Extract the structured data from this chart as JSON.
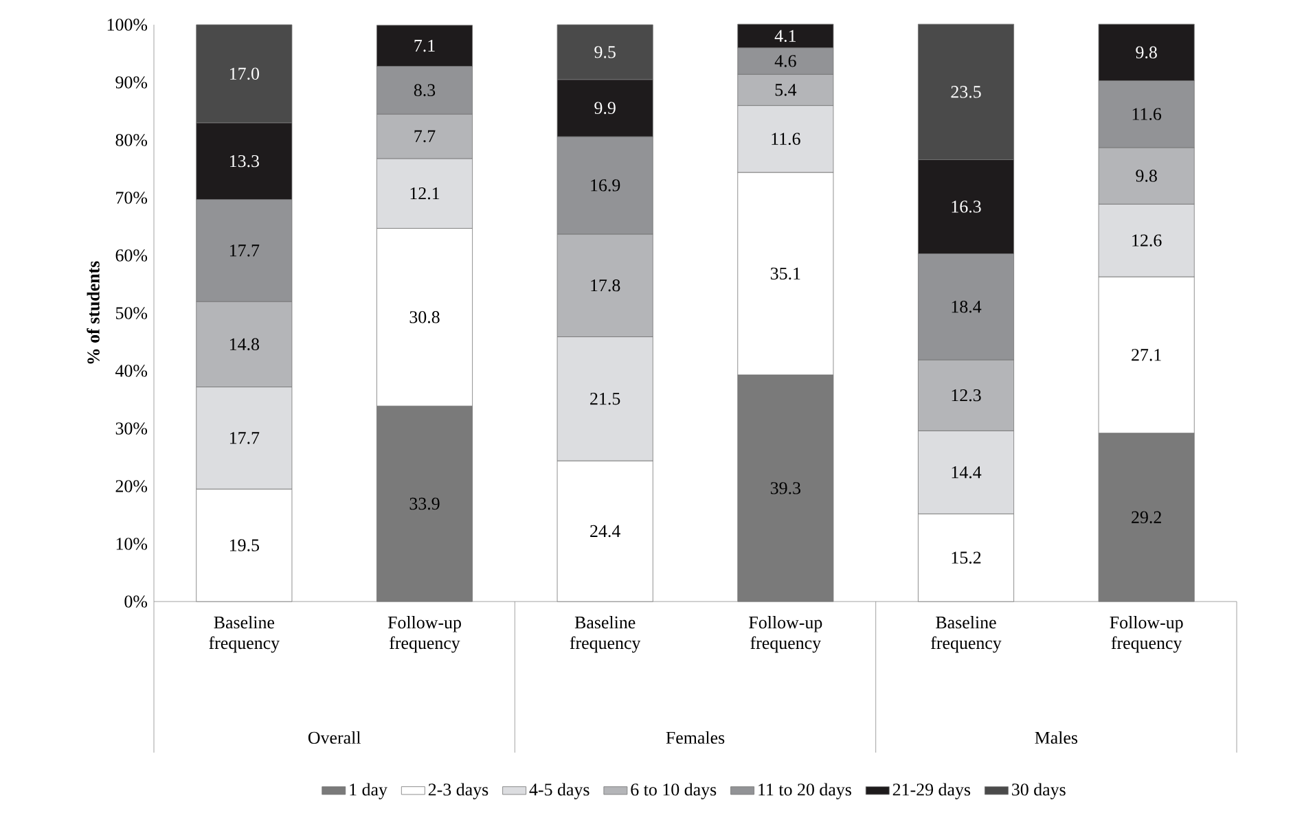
{
  "chart_data": {
    "type": "bar",
    "stacked": true,
    "ylabel": "% of students",
    "categories": [
      "Baseline frequency",
      "Follow-up frequency",
      "Baseline frequency",
      "Follow-up frequency",
      "Baseline frequency",
      "Follow-up frequency"
    ],
    "annotations": [
      "Overall",
      "Females",
      "Males"
    ],
    "ylim": [
      0,
      100
    ],
    "yticks": [
      {
        "value": 0,
        "label": "0%"
      },
      {
        "value": 10,
        "label": "10%"
      },
      {
        "value": 20,
        "label": "20%"
      },
      {
        "value": 30,
        "label": "30%"
      },
      {
        "value": 40,
        "label": "40%"
      },
      {
        "value": 50,
        "label": "50%"
      },
      {
        "value": 60,
        "label": "60%"
      },
      {
        "value": 70,
        "label": "70%"
      },
      {
        "value": 80,
        "label": "80%"
      },
      {
        "value": 90,
        "label": "90%"
      },
      {
        "value": 100,
        "label": "100%"
      }
    ],
    "legend": "bottom",
    "series": [
      {
        "name": "1 day",
        "color": "#7a7a7a",
        "values": [
          null,
          33.9,
          null,
          39.3,
          null,
          29.2
        ],
        "value_labels": [
          null,
          "33.9",
          null,
          "39.3",
          null,
          "29.2"
        ]
      },
      {
        "name": "2-3 days",
        "color": "#ffffff",
        "values": [
          19.5,
          30.8,
          24.4,
          35.1,
          15.2,
          27.1
        ],
        "value_labels": [
          "19.5",
          "30.8",
          "24.4",
          "35.1",
          "15.2",
          "27.1"
        ]
      },
      {
        "name": "4-5 days",
        "color": "#dcdde0",
        "values": [
          17.7,
          12.1,
          21.5,
          11.6,
          14.4,
          12.6
        ],
        "value_labels": [
          "17.7",
          "12.1",
          "21.5",
          "11.6",
          "14.4",
          "12.6"
        ]
      },
      {
        "name": "6 to 10 days",
        "color": "#b4b5b8",
        "values": [
          14.8,
          7.7,
          17.8,
          5.4,
          12.3,
          9.8
        ],
        "value_labels": [
          "14.8",
          "7.7",
          "17.8",
          "5.4",
          "12.3",
          "9.8"
        ]
      },
      {
        "name": "11 to 20 days",
        "color": "#929396",
        "values": [
          17.7,
          8.3,
          16.9,
          4.6,
          18.4,
          11.6
        ],
        "value_labels": [
          "17.7",
          "8.3",
          "16.9",
          "4.6",
          "18.4",
          "11.6"
        ]
      },
      {
        "name": "21-29 days",
        "color": "#1e1b1c",
        "values": [
          13.3,
          7.1,
          9.9,
          4.1,
          16.3,
          9.8
        ],
        "value_labels": [
          "13.3",
          "7.1",
          "9.9",
          "4.1",
          "16.3",
          "9.8"
        ]
      },
      {
        "name": "30 days",
        "color": "#4a4a4a",
        "values": [
          17.0,
          null,
          9.5,
          null,
          23.5,
          null
        ],
        "value_labels": [
          "17.0",
          null,
          "9.5",
          null,
          "23.5",
          null
        ]
      }
    ]
  }
}
